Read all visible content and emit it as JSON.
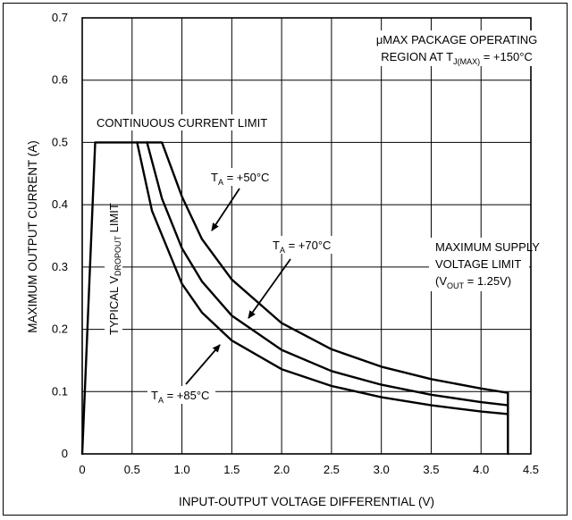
{
  "chart_data": {
    "type": "line",
    "title": "",
    "xlabel": "INPUT-OUTPUT VOLTAGE DIFFERENTIAL (V)",
    "ylabel": "MAXIMUM OUTPUT CURRENT (A)",
    "xlim": [
      0,
      4.5
    ],
    "ylim": [
      0,
      0.7
    ],
    "x_ticks": [
      "0",
      "0.5",
      "1.0",
      "1.5",
      "2.0",
      "2.5",
      "3.0",
      "3.5",
      "4.0",
      "4.5"
    ],
    "y_ticks": [
      "0",
      "0.1",
      "0.2",
      "0.3",
      "0.4",
      "0.5",
      "0.6",
      "0.7"
    ],
    "grid": true,
    "series": [
      {
        "name": "TA = +50°C",
        "label_main": "T",
        "label_sub": "A",
        "label_rest": " = +50°C",
        "x": [
          0,
          0.13,
          0.8,
          1.0,
          1.2,
          1.5,
          2.0,
          2.5,
          3.0,
          3.5,
          4.0,
          4.27,
          4.27
        ],
        "y": [
          0,
          0.5,
          0.5,
          0.413,
          0.345,
          0.28,
          0.21,
          0.168,
          0.14,
          0.12,
          0.105,
          0.098,
          0
        ]
      },
      {
        "name": "TA = +70°C",
        "label_main": "T",
        "label_sub": "A",
        "label_rest": " = +70°C",
        "x": [
          0.65,
          0.8,
          1.0,
          1.2,
          1.5,
          2.0,
          2.5,
          3.0,
          3.5,
          4.0,
          4.27
        ],
        "y": [
          0.5,
          0.41,
          0.33,
          0.277,
          0.222,
          0.167,
          0.133,
          0.111,
          0.095,
          0.083,
          0.078
        ]
      },
      {
        "name": "TA = +85°C",
        "label_main": "T",
        "label_sub": "A",
        "label_rest": " = +85°C",
        "x": [
          0.55,
          0.7,
          1.0,
          1.2,
          1.5,
          2.0,
          2.5,
          3.0,
          3.5,
          4.0,
          4.27
        ],
        "y": [
          0.5,
          0.39,
          0.273,
          0.227,
          0.182,
          0.136,
          0.109,
          0.091,
          0.078,
          0.068,
          0.064
        ]
      }
    ],
    "annotations": {
      "package_line1": "μMAX PACKAGE OPERATING",
      "package_line2_main": "REGION AT T",
      "package_line2_sub": "J(MAX)",
      "package_line2_rest": " = +150°C",
      "current_limit": "CONTINUOUS CURRENT LIMIT",
      "dropout_main": "TYPICAL V",
      "dropout_sub": "DROPOUT",
      "dropout_rest": " LIMIT",
      "supply_line1": "MAXIMUM SUPPLY",
      "supply_line2": "VOLTAGE LIMIT",
      "supply_line3_main": "(V",
      "supply_line3_sub": "OUT",
      "supply_line3_rest": " = 1.25V)"
    }
  }
}
